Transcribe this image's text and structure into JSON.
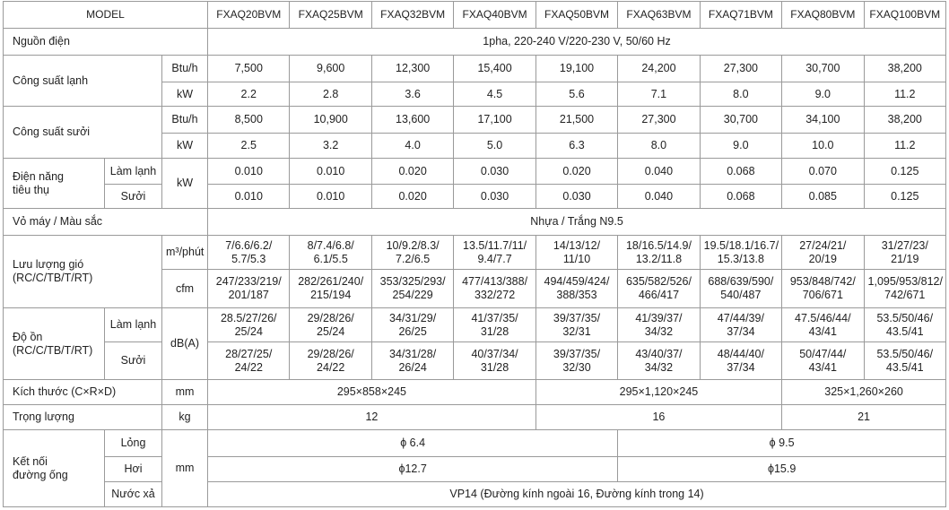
{
  "table": {
    "header": [
      "MODEL",
      "FXAQ20BVM",
      "FXAQ25BVM",
      "FXAQ32BVM",
      "FXAQ40BVM",
      "FXAQ50BVM",
      "FXAQ63BVM",
      "FXAQ71BVM",
      "FXAQ80BVM",
      "FXAQ100BVM"
    ],
    "rows": [
      [
        "Nguồn điện",
        "1pha, 220-240 V/220-230 V, 50/60 Hz"
      ],
      [
        "Công suất lạnh",
        "Btu/h",
        "7,500",
        "9,600",
        "12,300",
        "15,400",
        "19,100",
        "24,200",
        "27,300",
        "30,700",
        "38,200"
      ],
      [
        "kW",
        "2.2",
        "2.8",
        "3.6",
        "4.5",
        "5.6",
        "7.1",
        "8.0",
        "9.0",
        "11.2"
      ],
      [
        "Công suất sưởi",
        "Btu/h",
        "8,500",
        "10,900",
        "13,600",
        "17,100",
        "21,500",
        "27,300",
        "30,700",
        "34,100",
        "38,200"
      ],
      [
        "kW",
        "2.5",
        "3.2",
        "4.0",
        "5.0",
        "6.3",
        "8.0",
        "9.0",
        "10.0",
        "11.2"
      ],
      [
        "Điện năng\ntiêu thụ",
        "Làm lạnh",
        "kW",
        "0.010",
        "0.010",
        "0.020",
        "0.030",
        "0.020",
        "0.040",
        "0.068",
        "0.070",
        "0.125"
      ],
      [
        "Sưởi",
        "0.010",
        "0.010",
        "0.020",
        "0.030",
        "0.030",
        "0.040",
        "0.068",
        "0.085",
        "0.125"
      ],
      [
        "Vỏ máy / Màu sắc",
        "Nhựa / Trắng N9.5"
      ],
      [
        "Lưu lượng gió\n(RC/C/TB/T/RT)",
        "m³/phút",
        "7/6.6/6.2/\n5.7/5.3",
        "8/7.4/6.8/\n6.1/5.5",
        "10/9.2/8.3/\n7.2/6.5",
        "13.5/11.7/11/\n9.4/7.7",
        "14/13/12/\n11/10",
        "18/16.5/14.9/\n13.2/11.8",
        "19.5/18.1/16.7/\n15.3/13.8",
        "27/24/21/\n20/19",
        "31/27/23/\n21/19"
      ],
      [
        "cfm",
        "247/233/219/\n201/187",
        "282/261/240/\n215/194",
        "353/325/293/\n254/229",
        "477/413/388/\n332/272",
        "494/459/424/\n388/353",
        "635/582/526/\n466/417",
        "688/639/590/\n540/487",
        "953/848/742/\n706/671",
        "1,095/953/812/\n742/671"
      ],
      [
        "Độ ồn\n(RC/C/TB/T/RT)",
        "Làm lạnh",
        "dB(A)",
        "28.5/27/26/\n25/24",
        "29/28/26/\n25/24",
        "34/31/29/\n26/25",
        "41/37/35/\n31/28",
        "39/37/35/\n32/31",
        "41/39/37/\n34/32",
        "47/44/39/\n37/34",
        "47.5/46/44/\n43/41",
        "53.5/50/46/\n43.5/41"
      ],
      [
        "Sưởi",
        "28/27/25/\n24/22",
        "29/28/26/\n24/22",
        "34/31/28/\n26/24",
        "40/37/34/\n31/28",
        "39/37/35/\n32/30",
        "43/40/37/\n34/32",
        "48/44/40/\n37/34",
        "50/47/44/\n43/41",
        "53.5/50/46/\n43.5/41"
      ],
      [
        "Kích thước (C×R×D)",
        "mm",
        "295×858×245",
        "295×1,120×245",
        "325×1,260×260"
      ],
      [
        "Trọng lượng",
        "kg",
        "12",
        "16",
        "21"
      ],
      [
        "Kết nối\nđường ống",
        "Lỏng",
        "mm",
        "ϕ 6.4",
        "ϕ 9.5"
      ],
      [
        "Hơi",
        "ϕ12.7",
        "ϕ15.9"
      ],
      [
        "Nước xả",
        "VP14 (Đường kính ngoài 16, Đường kính trong 14)"
      ]
    ]
  }
}
